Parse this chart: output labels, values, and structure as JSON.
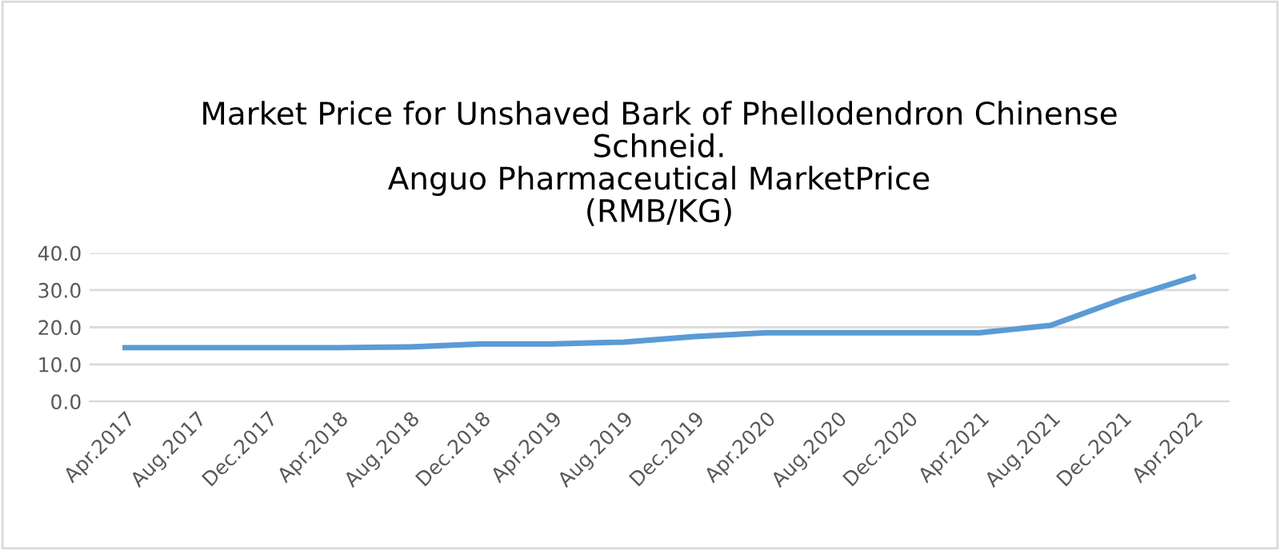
{
  "chart_data": {
    "type": "line",
    "title": "Market Price for Unshaved Bark of Phellodendron Chinense\nSchneid.\nAnguo Pharmaceutical MarketPrice\n(RMB/KG)",
    "categories": [
      "Apr.2017",
      "Aug.2017",
      "Dec.2017",
      "Apr.2018",
      "Aug.2018",
      "Dec.2018",
      "Apr.2019",
      "Aug.2019",
      "Dec.2019",
      "Apr.2020",
      "Aug.2020",
      "Dec.2020",
      "Apr.2021",
      "Aug.2021",
      "Dec.2021",
      "Apr.2022"
    ],
    "series": [
      {
        "color": "#5b9bd5",
        "values": [
          14.5,
          14.5,
          14.5,
          14.5,
          14.7,
          15.5,
          15.5,
          16,
          17.5,
          18.5,
          18.5,
          18.5,
          18.5,
          20.5,
          27.5,
          33.5
        ]
      }
    ],
    "ylim": [
      0,
      40
    ],
    "yticks": [
      {
        "value": 0,
        "label": "0.0"
      },
      {
        "value": 10,
        "label": "10.0"
      },
      {
        "value": 20,
        "label": "20.0"
      },
      {
        "value": 30,
        "label": "30.0"
      },
      {
        "value": 40,
        "label": "40.0"
      }
    ],
    "grid": "y",
    "marker": "none",
    "line_style": "solid"
  }
}
